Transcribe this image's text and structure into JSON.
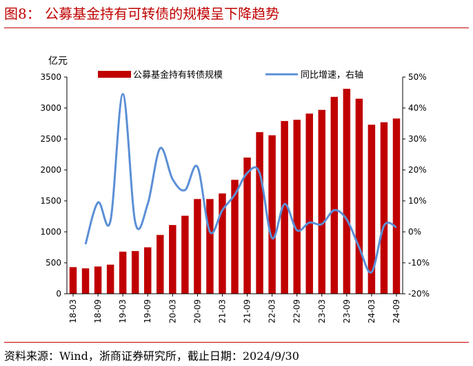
{
  "header": {
    "title": "图8：  公募基金持有可转债的规模呈下降趋势"
  },
  "footer": {
    "source": "资料来源：Wind，浙商证券研究所，截止日期：2024/9/30"
  },
  "colors": {
    "bar": "#c00000",
    "line": "#5b8fd6",
    "brand": "#c00000"
  },
  "chart_data": {
    "type": "bar",
    "title": "公募基金持有可转债的规模呈下降趋势",
    "ylabel": "亿元",
    "ylim": [
      0,
      3500
    ],
    "y2lim": [
      -20,
      50
    ],
    "yticks": [
      "0",
      "500",
      "1000",
      "1500",
      "2000",
      "2500",
      "3000",
      "3500"
    ],
    "y2ticks": [
      "-20%",
      "-10%",
      "0%",
      "10%",
      "20%",
      "30%",
      "40%",
      "50%"
    ],
    "xtick_labels": [
      "18-03",
      "18-09",
      "19-03",
      "19-09",
      "20-03",
      "20-09",
      "21-03",
      "21-09",
      "22-03",
      "22-09",
      "23-03",
      "23-09",
      "24-03",
      "24-09"
    ],
    "categories": [
      "18-03",
      "18-06",
      "18-09",
      "18-12",
      "19-03",
      "19-06",
      "19-09",
      "19-12",
      "20-03",
      "20-06",
      "20-09",
      "20-12",
      "21-03",
      "21-06",
      "21-09",
      "21-12",
      "22-03",
      "22-06",
      "22-09",
      "22-12",
      "23-03",
      "23-06",
      "23-09",
      "23-12",
      "24-03",
      "24-06",
      "24-09"
    ],
    "legend": {
      "position": "top",
      "bar_label": "公募基金持有转债规模",
      "line_label": "同比增速，右轴"
    },
    "series": [
      {
        "name": "公募基金持有转债规模",
        "type": "bar",
        "axis": "left",
        "values": [
          430,
          410,
          440,
          470,
          680,
          690,
          750,
          950,
          1110,
          1260,
          1530,
          1530,
          1620,
          1840,
          2200,
          2610,
          2560,
          2790,
          2810,
          2910,
          2970,
          3180,
          3310,
          3150,
          2730,
          2770,
          2830
        ]
      },
      {
        "name": "同比增速，右轴",
        "type": "line",
        "axis": "right",
        "values": [
          null,
          -4,
          9.5,
          3.5,
          44.5,
          3,
          9,
          27,
          17,
          13.5,
          21,
          0,
          7,
          12,
          19,
          19,
          -2,
          9,
          0.5,
          3,
          2.5,
          7,
          4,
          -5,
          -13,
          2,
          1.5
        ]
      }
    ]
  }
}
